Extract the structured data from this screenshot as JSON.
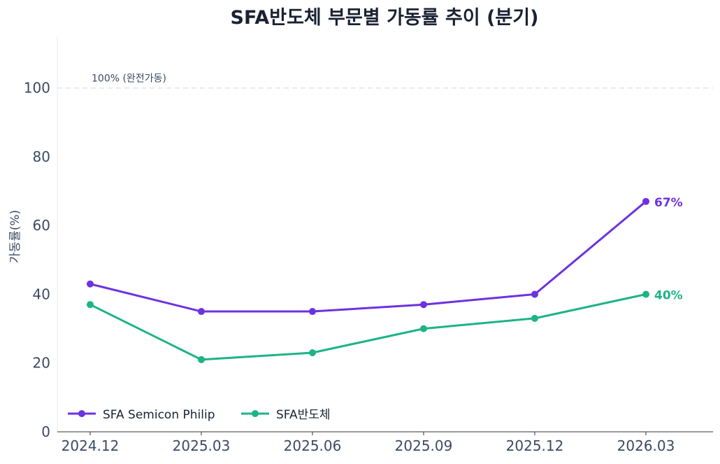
{
  "chart_data": {
    "type": "line",
    "title": "SFA반도체 부문별 가동률 추이 (분기)",
    "xlabel": "",
    "ylabel": "가동률(%)",
    "categories": [
      "2024.12",
      "2025.03",
      "2025.06",
      "2025.09",
      "2025.12",
      "2026.03"
    ],
    "ylim": [
      0,
      115
    ],
    "yticks": [
      0,
      20,
      40,
      60,
      80,
      100
    ],
    "grid": false,
    "legend_position": "bottom-left",
    "reference_line": {
      "value": 100,
      "label": "100% (완전가동)"
    },
    "series": [
      {
        "name": "SFA Semicon Philip",
        "color": "#6d32e0",
        "values": [
          43,
          35,
          35,
          37,
          40,
          67
        ],
        "end_label": "67%"
      },
      {
        "name": "SFA반도체",
        "color": "#1db386",
        "values": [
          37,
          21,
          23,
          30,
          33,
          40
        ],
        "end_label": "40%"
      }
    ]
  },
  "colors": {
    "title": "#1a2233",
    "axis_text": "#3b4a63",
    "axis_line": "#333333",
    "reference_line": "#e1e6ec"
  }
}
